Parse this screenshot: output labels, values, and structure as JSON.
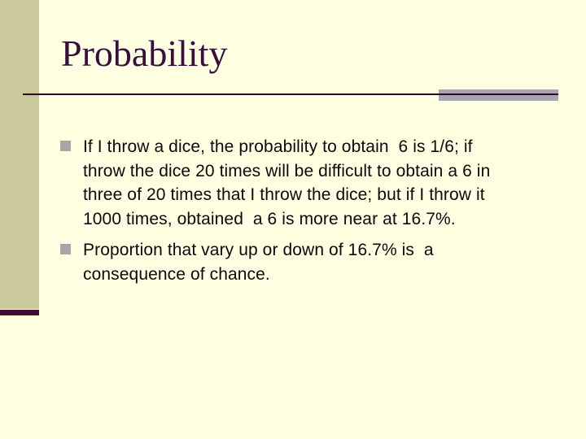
{
  "slide": {
    "title": "Probability",
    "bullets": [
      {
        "text": "If I throw a dice, the probability to obtain  6 is 1/6; if\nthrow the dice 20 times will be difficult to obtain a 6 in\nthree of 20 times that I throw the dice; but if I throw it\n1000 times, obtained  a 6 is more near at 16.7%."
      },
      {
        "text": "Proportion that vary up or down of 16.7% is  a\nconsequence of chance."
      }
    ],
    "colors": {
      "background": "#FFFFE2",
      "sidebar": "#CAC99C",
      "sidebar_accent": "#400C36",
      "title_text": "#3A0D3F",
      "rule_line": "#2E0826",
      "rule_accent": "#A8A4B1",
      "bullet_square": "#A6A6A6",
      "body_text": "#0A0A0A"
    }
  }
}
